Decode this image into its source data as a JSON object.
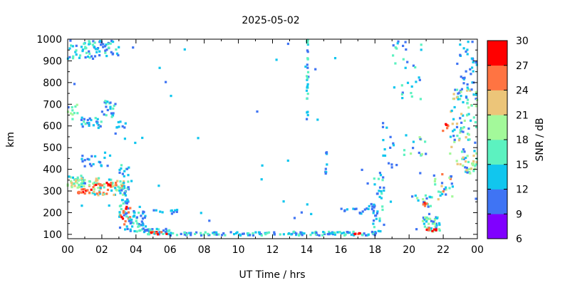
{
  "chart_data": {
    "type": "scatter",
    "title": "2025-05-02",
    "xlabel": "UT Time / hrs",
    "ylabel": "km",
    "xlim": [
      0,
      24
    ],
    "ylim": [
      80,
      1000
    ],
    "x_tick_labels": [
      "00",
      "02",
      "04",
      "06",
      "08",
      "10",
      "12",
      "14",
      "16",
      "18",
      "20",
      "22",
      "00"
    ],
    "y_tick_labels": [
      "100",
      "200",
      "300",
      "400",
      "500",
      "600",
      "700",
      "800",
      "900",
      "1000"
    ],
    "grid": false,
    "colorbar": {
      "label": "SNR / dB",
      "range": [
        6,
        30
      ],
      "tick_labels": [
        "6",
        "9",
        "12",
        "15",
        "18",
        "21",
        "24",
        "27",
        "30"
      ],
      "colors": [
        "#8000ff",
        "#3f74f4",
        "#11c6ee",
        "#5cf2c0",
        "#a3f99a",
        "#ecc579",
        "#ff7442",
        "#ff0000"
      ]
    },
    "clusters": [
      {
        "x": [
          0.0,
          1.0
        ],
        "y": [
          310,
          370
        ],
        "snr": [
          12,
          24
        ],
        "n": 45
      },
      {
        "x": [
          1.0,
          3.3
        ],
        "y": [
          280,
          360
        ],
        "snr": [
          12,
          27
        ],
        "n": 70
      },
      {
        "x": [
          0.6,
          1.4
        ],
        "y": [
          290,
          310
        ],
        "snr": [
          24,
          30
        ],
        "n": 12
      },
      {
        "x": [
          1.6,
          2.6
        ],
        "y": [
          325,
          340
        ],
        "snr": [
          24,
          30
        ],
        "n": 10
      },
      {
        "x": [
          0.0,
          0.6
        ],
        "y": [
          620,
          700
        ],
        "snr": [
          12,
          21
        ],
        "n": 10
      },
      {
        "x": [
          0.8,
          2.0
        ],
        "y": [
          590,
          640
        ],
        "snr": [
          9,
          18
        ],
        "n": 25
      },
      {
        "x": [
          2.0,
          2.8
        ],
        "y": [
          640,
          720
        ],
        "snr": [
          9,
          18
        ],
        "n": 22
      },
      {
        "x": [
          2.8,
          3.4
        ],
        "y": [
          540,
          620
        ],
        "snr": [
          9,
          15
        ],
        "n": 10
      },
      {
        "x": [
          0.0,
          1.4
        ],
        "y": [
          910,
          1000
        ],
        "snr": [
          9,
          18
        ],
        "n": 32
      },
      {
        "x": [
          1.4,
          3.1
        ],
        "y": [
          920,
          1000
        ],
        "snr": [
          9,
          18
        ],
        "n": 38
      },
      {
        "x": [
          0.8,
          2.6
        ],
        "y": [
          400,
          480
        ],
        "snr": [
          9,
          15
        ],
        "n": 20
      },
      {
        "x": [
          3.0,
          3.6
        ],
        "y": [
          120,
          420
        ],
        "snr": [
          9,
          18
        ],
        "n": 55
      },
      {
        "x": [
          3.1,
          3.7
        ],
        "y": [
          140,
          230
        ],
        "snr": [
          24,
          30
        ],
        "n": 15
      },
      {
        "x": [
          3.6,
          4.6
        ],
        "y": [
          110,
          210
        ],
        "snr": [
          9,
          18
        ],
        "n": 45
      },
      {
        "x": [
          4.5,
          6.0
        ],
        "y": [
          100,
          125
        ],
        "snr": [
          9,
          18
        ],
        "n": 40
      },
      {
        "x": [
          4.8,
          5.8
        ],
        "y": [
          100,
          112
        ],
        "snr": [
          24,
          30
        ],
        "n": 8
      },
      {
        "x": [
          4.5,
          6.8
        ],
        "y": [
          195,
          215
        ],
        "snr": [
          9,
          15
        ],
        "n": 12
      },
      {
        "x": [
          6.0,
          13.0
        ],
        "y": [
          95,
          110
        ],
        "snr": [
          9,
          18
        ],
        "n": 70
      },
      {
        "x": [
          13.0,
          18.2
        ],
        "y": [
          95,
          112
        ],
        "snr": [
          9,
          18
        ],
        "n": 70
      },
      {
        "x": [
          16.8,
          17.2
        ],
        "y": [
          100,
          108
        ],
        "snr": [
          24,
          30
        ],
        "n": 5
      },
      {
        "x": [
          16.0,
          18.2
        ],
        "y": [
          195,
          240
        ],
        "snr": [
          9,
          15
        ],
        "n": 25
      },
      {
        "x": [
          17.9,
          18.6
        ],
        "y": [
          110,
          400
        ],
        "snr": [
          9,
          18
        ],
        "n": 30
      },
      {
        "x": [
          18.4,
          19.2
        ],
        "y": [
          400,
          650
        ],
        "snr": [
          9,
          15
        ],
        "n": 12
      },
      {
        "x": [
          14.0,
          14.1
        ],
        "y": [
          630,
          1000
        ],
        "snr": [
          9,
          18
        ],
        "n": 30
      },
      {
        "x": [
          15.1,
          15.2
        ],
        "y": [
          380,
          480
        ],
        "snr": [
          9,
          15
        ],
        "n": 8
      },
      {
        "x": [
          19.0,
          20.8
        ],
        "y": [
          720,
          1000
        ],
        "snr": [
          9,
          18
        ],
        "n": 30
      },
      {
        "x": [
          19.6,
          21.0
        ],
        "y": [
          460,
          560
        ],
        "snr": [
          9,
          21
        ],
        "n": 15
      },
      {
        "x": [
          20.8,
          21.8
        ],
        "y": [
          110,
          180
        ],
        "snr": [
          9,
          21
        ],
        "n": 40
      },
      {
        "x": [
          21.0,
          21.6
        ],
        "y": [
          115,
          130
        ],
        "snr": [
          24,
          30
        ],
        "n": 8
      },
      {
        "x": [
          20.0,
          21.4
        ],
        "y": [
          220,
          280
        ],
        "snr": [
          9,
          21
        ],
        "n": 15
      },
      {
        "x": [
          20.8,
          21.2
        ],
        "y": [
          225,
          245
        ],
        "snr": [
          24,
          30
        ],
        "n": 5
      },
      {
        "x": [
          21.4,
          22.6
        ],
        "y": [
          250,
          380
        ],
        "snr": [
          9,
          27
        ],
        "n": 22
      },
      {
        "x": [
          21.8,
          22.3
        ],
        "y": [
          570,
          610
        ],
        "snr": [
          24,
          30
        ],
        "n": 6
      },
      {
        "x": [
          22.4,
          24.0
        ],
        "y": [
          380,
          780
        ],
        "snr": [
          9,
          24
        ],
        "n": 110
      },
      {
        "x": [
          22.8,
          24.0
        ],
        "y": [
          780,
          1000
        ],
        "snr": [
          9,
          15
        ],
        "n": 30
      },
      {
        "x": [
          23.3,
          24.0
        ],
        "y": [
          390,
          440
        ],
        "snr": [
          18,
          24
        ],
        "n": 10
      },
      {
        "x": [
          0.0,
          24.0
        ],
        "y": [
          80,
          1000
        ],
        "snr": [
          9,
          15
        ],
        "n": 50
      }
    ]
  }
}
